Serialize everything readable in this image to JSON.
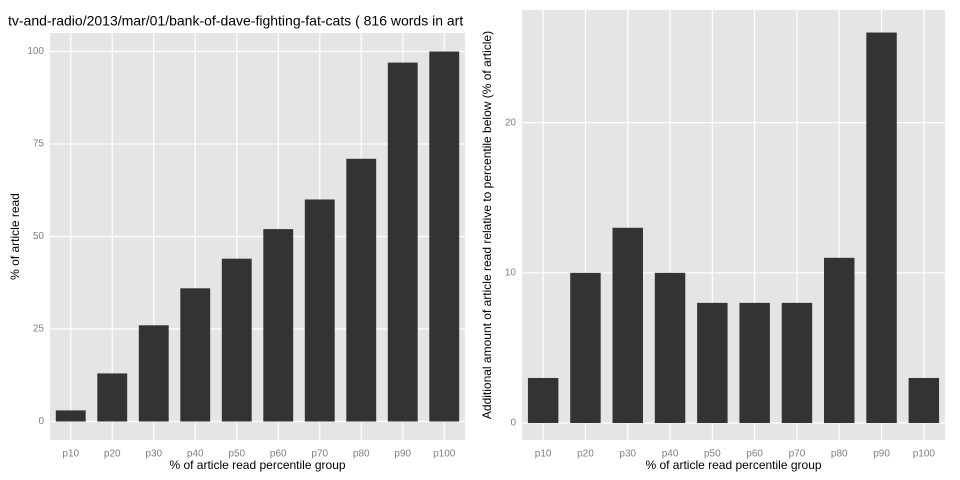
{
  "chart_data": [
    {
      "type": "bar",
      "title": "tv-and-radio/2013/mar/01/bank-of-dave-fighting-fat-cats ( 816 words in art",
      "x_label": "% of article read percentile group",
      "y_label": "% of article read",
      "categories": [
        "p10",
        "p20",
        "p30",
        "p40",
        "p50",
        "p60",
        "p70",
        "p80",
        "p90",
        "p100"
      ],
      "values": [
        3,
        13,
        26,
        36,
        44,
        52,
        60,
        71,
        97,
        100
      ],
      "color": "#333333",
      "ylim": [
        -5,
        105
      ],
      "yticks": [
        0,
        25,
        50,
        75,
        100
      ],
      "grid": true
    },
    {
      "type": "bar",
      "x_label": "% of article read percentile group",
      "y_label": "Additional amount of article read relative to percentile below (% of article)",
      "categories": [
        "p10",
        "p20",
        "p30",
        "p40",
        "p50",
        "p60",
        "p70",
        "p80",
        "p90",
        "p100"
      ],
      "values": [
        3,
        10,
        13,
        10,
        8,
        8,
        8,
        11,
        26,
        3
      ],
      "color": "#333333",
      "ylim": [
        -1.13,
        27.5
      ],
      "yticks": [
        0,
        10,
        20
      ],
      "grid": true
    }
  ]
}
